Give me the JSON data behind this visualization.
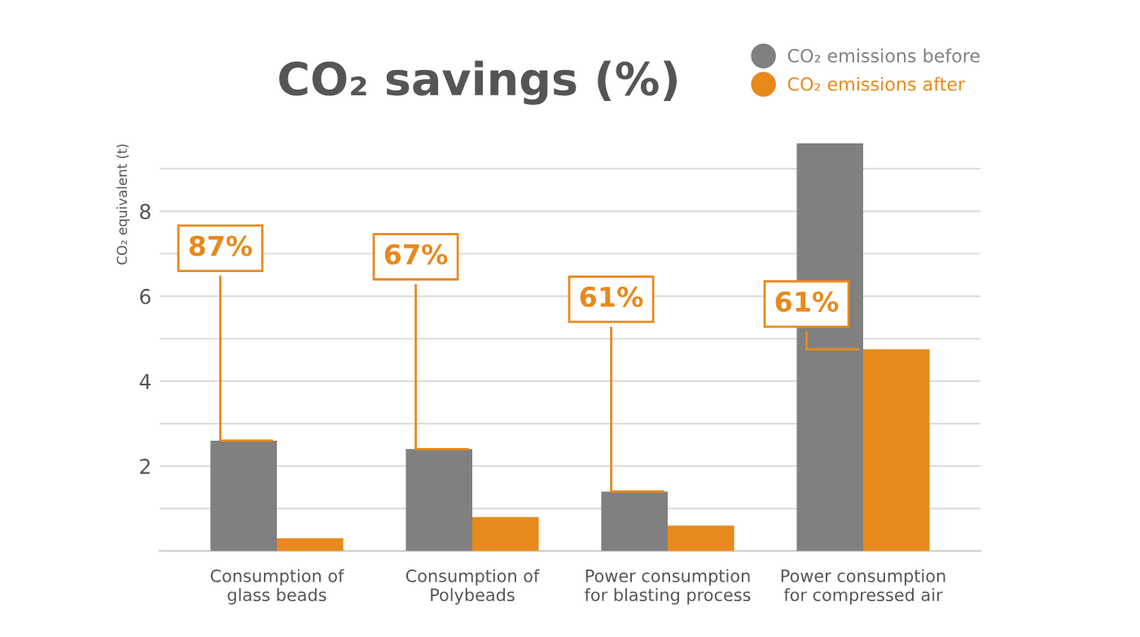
{
  "chart_data": {
    "type": "bar",
    "title": "CO₂ savings (%)",
    "ylabel": "CO₂ equivalent (t)",
    "categories": [
      "Consumption of\nglass beads",
      "Consumption of\nPolybeads",
      "Power consumption\nfor blasting process",
      "Power consumption\nfor compressed air"
    ],
    "series": [
      {
        "name": "CO₂ emissions before",
        "color": "#808080",
        "values": [
          2.6,
          2.4,
          1.4,
          9.6
        ]
      },
      {
        "name": "CO₂ emissions after",
        "color": "#e8891c",
        "values": [
          0.3,
          0.8,
          0.6,
          4.75
        ]
      }
    ],
    "ylim": [
      0,
      9.6
    ],
    "yticks": [
      {
        "value": 1,
        "label": null
      },
      2,
      {
        "value": 3,
        "label": null
      },
      4,
      {
        "value": 5,
        "label": null
      },
      6,
      {
        "value": 7,
        "label": null
      },
      8,
      {
        "value": 9,
        "label": null
      }
    ],
    "grid": "y",
    "legend": "top right",
    "marker": "circle",
    "annotations": [
      {
        "text": "87%",
        "x": "Consumption of\nglass beads",
        "y": 2.6
      },
      {
        "text": "67%",
        "x": "Consumption of\nPolybeads",
        "y": 2.4
      },
      {
        "text": "61%",
        "x": "Power consumption\nfor blasting process",
        "y": 1.4
      },
      {
        "text": "61%",
        "x": "Power consumption\nfor compressed air",
        "y": 4.75
      }
    ]
  }
}
